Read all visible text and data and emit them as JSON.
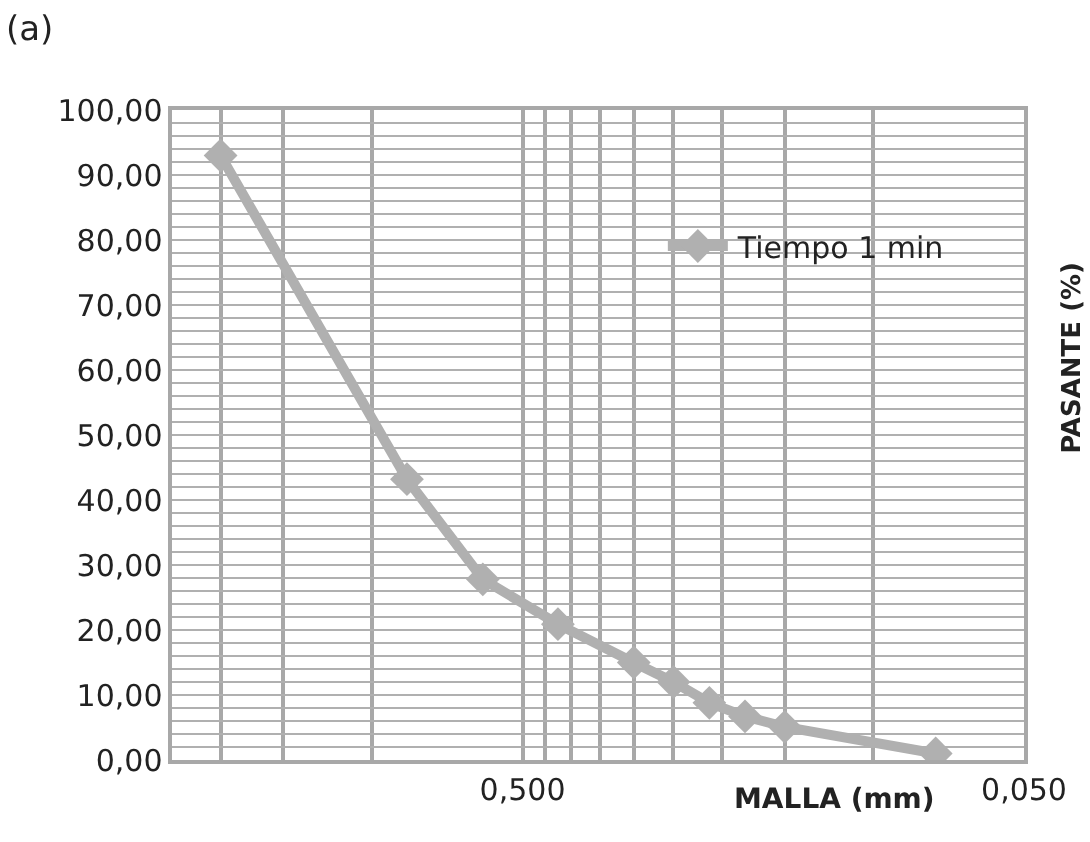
{
  "chart_data": {
    "type": "line",
    "title": "(a)",
    "xlabel": "MALLA (mm)",
    "ylabel": "PASANTE (%)",
    "log": "x",
    "xlim": [
      2.5,
      0.05
    ],
    "ylim": [
      0,
      100
    ],
    "xticks": [
      {
        "value": 2,
        "label": null
      },
      {
        "value": 1.5,
        "label": null
      },
      {
        "value": 1,
        "label": null
      },
      {
        "value": 0.5,
        "label": "0,500"
      },
      {
        "value": 0.45,
        "label": null
      },
      {
        "value": 0.4,
        "label": null
      },
      {
        "value": 0.35,
        "label": null
      },
      {
        "value": 0.3,
        "label": null
      },
      {
        "value": 0.25,
        "label": null
      },
      {
        "value": 0.2,
        "label": null
      },
      {
        "value": 0.15,
        "label": null
      },
      {
        "value": 0.1,
        "label": null
      },
      {
        "value": 0.05,
        "label": "0,050"
      }
    ],
    "yticks": [
      {
        "value": 0,
        "label": "0,00"
      },
      {
        "value": 2,
        "label": null
      },
      {
        "value": 4,
        "label": null
      },
      {
        "value": 6,
        "label": null
      },
      {
        "value": 8,
        "label": null
      },
      {
        "value": 10,
        "label": "10,00"
      },
      {
        "value": 12,
        "label": null
      },
      {
        "value": 14,
        "label": null
      },
      {
        "value": 16,
        "label": null
      },
      {
        "value": 18,
        "label": null
      },
      {
        "value": 20,
        "label": "20,00"
      },
      {
        "value": 22,
        "label": null
      },
      {
        "value": 24,
        "label": null
      },
      {
        "value": 26,
        "label": null
      },
      {
        "value": 28,
        "label": null
      },
      {
        "value": 30,
        "label": "30,00"
      },
      {
        "value": 32,
        "label": null
      },
      {
        "value": 34,
        "label": null
      },
      {
        "value": 36,
        "label": null
      },
      {
        "value": 38,
        "label": null
      },
      {
        "value": 40,
        "label": "40,00"
      },
      {
        "value": 42,
        "label": null
      },
      {
        "value": 44,
        "label": null
      },
      {
        "value": 46,
        "label": null
      },
      {
        "value": 48,
        "label": null
      },
      {
        "value": 50,
        "label": "50,00"
      },
      {
        "value": 52,
        "label": null
      },
      {
        "value": 54,
        "label": null
      },
      {
        "value": 56,
        "label": null
      },
      {
        "value": 58,
        "label": null
      },
      {
        "value": 60,
        "label": "60,00"
      },
      {
        "value": 62,
        "label": null
      },
      {
        "value": 64,
        "label": null
      },
      {
        "value": 66,
        "label": null
      },
      {
        "value": 68,
        "label": null
      },
      {
        "value": 70,
        "label": "70,00"
      },
      {
        "value": 72,
        "label": null
      },
      {
        "value": 74,
        "label": null
      },
      {
        "value": 76,
        "label": null
      },
      {
        "value": 78,
        "label": null
      },
      {
        "value": 80,
        "label": "80,00"
      },
      {
        "value": 82,
        "label": null
      },
      {
        "value": 84,
        "label": null
      },
      {
        "value": 86,
        "label": null
      },
      {
        "value": 88,
        "label": null
      },
      {
        "value": 90,
        "label": "90,00"
      },
      {
        "value": 92,
        "label": null
      },
      {
        "value": 94,
        "label": null
      },
      {
        "value": 96,
        "label": null
      },
      {
        "value": 98,
        "label": null
      },
      {
        "value": 100,
        "label": "100,00"
      }
    ],
    "grid": true,
    "legend": "top right",
    "marker": "diamond",
    "line_style": "solid",
    "x": [
      2.0,
      0.85,
      0.6,
      0.425,
      0.3,
      0.25,
      0.212,
      0.18,
      0.15,
      0.075
    ],
    "series": [
      {
        "name": "Tiempo 1 min",
        "color": "#b0b0b0",
        "values": [
          93,
          43.2,
          27.8,
          20.9,
          15.0,
          12.0,
          8.8,
          6.7,
          5.1,
          1.0
        ]
      }
    ]
  }
}
